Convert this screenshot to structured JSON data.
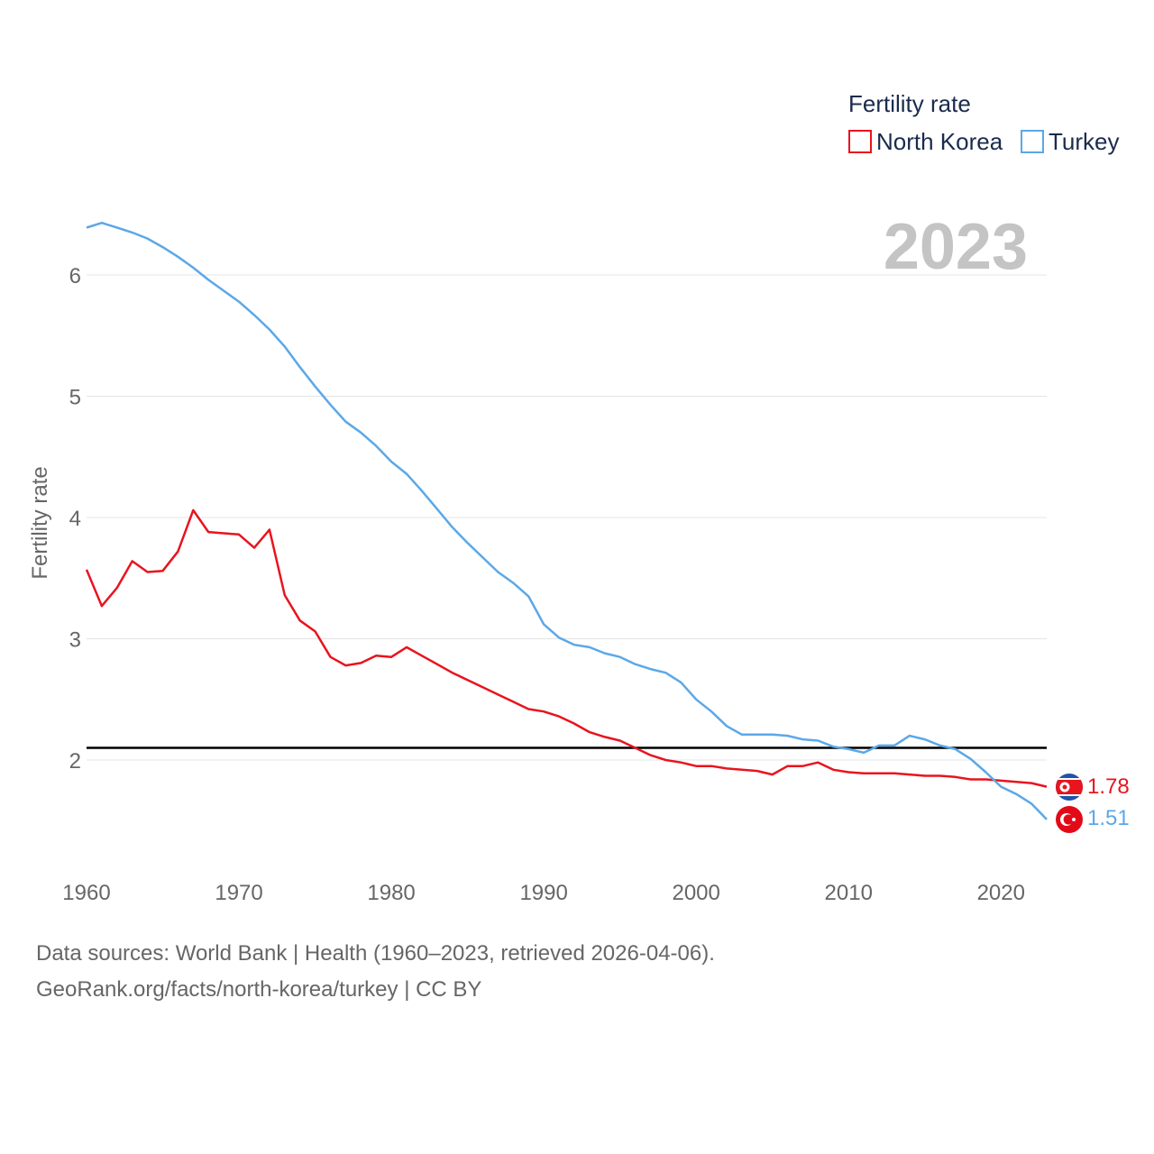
{
  "chart_data": {
    "type": "line",
    "legend": {
      "title": "Fertility rate",
      "placement": "top-right"
    },
    "year_label": "2023",
    "ylabel": "Fertility rate",
    "xlabel": "",
    "xlim": [
      1960,
      2023
    ],
    "ylim": [
      1.3,
      6.45
    ],
    "x_ticks": [
      1960,
      1970,
      1980,
      1990,
      2000,
      2010,
      2020
    ],
    "y_ticks": [
      2,
      3,
      4,
      5,
      6
    ],
    "reference_line": {
      "y": 2.1,
      "color": "#000000"
    },
    "x": [
      1960,
      1961,
      1962,
      1963,
      1964,
      1965,
      1966,
      1967,
      1968,
      1969,
      1970,
      1971,
      1972,
      1973,
      1974,
      1975,
      1976,
      1977,
      1978,
      1979,
      1980,
      1981,
      1982,
      1983,
      1984,
      1985,
      1986,
      1987,
      1988,
      1989,
      1990,
      1991,
      1992,
      1993,
      1994,
      1995,
      1996,
      1997,
      1998,
      1999,
      2000,
      2001,
      2002,
      2003,
      2004,
      2005,
      2006,
      2007,
      2008,
      2009,
      2010,
      2011,
      2012,
      2013,
      2014,
      2015,
      2016,
      2017,
      2018,
      2019,
      2020,
      2021,
      2022,
      2023
    ],
    "series": [
      {
        "name": "North Korea",
        "color": "#e8141e",
        "end_label": "1.78",
        "values": [
          3.57,
          3.27,
          3.42,
          3.64,
          3.55,
          3.56,
          3.72,
          4.06,
          3.88,
          3.87,
          3.86,
          3.75,
          3.9,
          3.36,
          3.15,
          3.06,
          2.85,
          2.78,
          2.8,
          2.86,
          2.85,
          2.93,
          2.86,
          2.79,
          2.72,
          2.66,
          2.6,
          2.54,
          2.48,
          2.42,
          2.4,
          2.36,
          2.3,
          2.23,
          2.19,
          2.16,
          2.1,
          2.04,
          2.0,
          1.98,
          1.95,
          1.95,
          1.93,
          1.92,
          1.91,
          1.88,
          1.95,
          1.95,
          1.98,
          1.92,
          1.9,
          1.89,
          1.89,
          1.89,
          1.88,
          1.87,
          1.87,
          1.86,
          1.84,
          1.84,
          1.83,
          1.82,
          1.81,
          1.78
        ]
      },
      {
        "name": "Turkey",
        "color": "#5ba8e8",
        "end_label": "1.51",
        "values": [
          6.39,
          6.43,
          6.39,
          6.35,
          6.3,
          6.23,
          6.15,
          6.06,
          5.96,
          5.87,
          5.78,
          5.67,
          5.55,
          5.41,
          5.24,
          5.08,
          4.93,
          4.79,
          4.7,
          4.59,
          4.46,
          4.36,
          4.22,
          4.07,
          3.92,
          3.79,
          3.67,
          3.55,
          3.46,
          3.35,
          3.12,
          3.01,
          2.95,
          2.93,
          2.88,
          2.85,
          2.79,
          2.75,
          2.72,
          2.64,
          2.5,
          2.4,
          2.28,
          2.21,
          2.21,
          2.21,
          2.2,
          2.17,
          2.16,
          2.11,
          2.09,
          2.06,
          2.12,
          2.12,
          2.2,
          2.17,
          2.12,
          2.09,
          2.01,
          1.9,
          1.78,
          1.72,
          1.64,
          1.51
        ]
      }
    ]
  },
  "source_lines": [
    "Data sources: World Bank | Health (1960–2023, retrieved 2026-04-06).",
    "GeoRank.org/facts/north-korea/turkey | CC BY"
  ]
}
